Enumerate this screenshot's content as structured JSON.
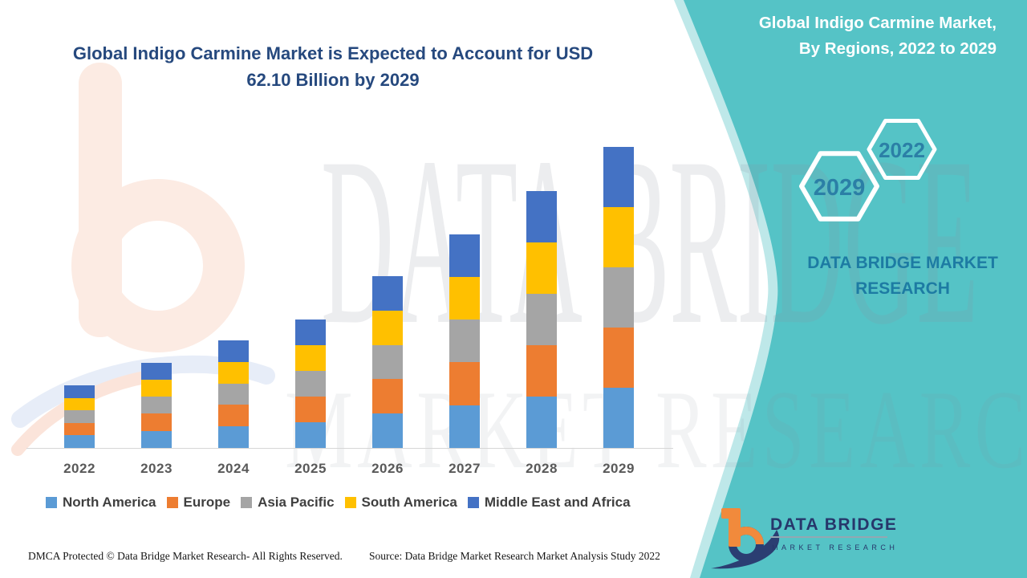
{
  "title": {
    "lines": [
      "Global Indigo Carmine Market is Expected to Account for USD",
      "62.10 Billion by 2029"
    ],
    "color": "#26497E"
  },
  "side_panel": {
    "bg_color": "#55C3C6",
    "heading_lines": [
      "Global Indigo Carmine Market,",
      "By Regions, 2022 to 2029"
    ],
    "hexagons": [
      {
        "label": "2029"
      },
      {
        "label": "2022"
      }
    ],
    "brand_lines": [
      "DATA BRIDGE MARKET",
      "RESEARCH"
    ],
    "brand_color": "#1d7ba3"
  },
  "chart_data": {
    "type": "bar",
    "stacked": true,
    "title": "Global Indigo Carmine Market, By Regions, 2022 to 2029",
    "unit": "USD Billion",
    "categories": [
      "2022",
      "2023",
      "2024",
      "2025",
      "2026",
      "2027",
      "2028",
      "2029"
    ],
    "totals_estimated": [
      12.9,
      17.6,
      22.2,
      26.5,
      35.4,
      44.1,
      53.0,
      62.1
    ],
    "series": [
      {
        "name": "North America",
        "color": "#5B9BD5",
        "values": [
          2.58,
          3.52,
          4.44,
          5.3,
          7.08,
          8.82,
          10.6,
          12.42
        ]
      },
      {
        "name": "Europe",
        "color": "#ED7D31",
        "values": [
          2.58,
          3.52,
          4.44,
          5.3,
          7.08,
          8.82,
          10.6,
          12.42
        ]
      },
      {
        "name": "Asia Pacific",
        "color": "#A5A5A5",
        "values": [
          2.58,
          3.52,
          4.44,
          5.3,
          7.08,
          8.82,
          10.6,
          12.42
        ]
      },
      {
        "name": "South America",
        "color": "#FFC000",
        "values": [
          2.58,
          3.52,
          4.44,
          5.3,
          7.08,
          8.82,
          10.6,
          12.42
        ]
      },
      {
        "name": "Middle East and Africa",
        "color": "#4472C4",
        "values": [
          2.58,
          3.52,
          4.44,
          5.3,
          7.08,
          8.82,
          10.6,
          12.42
        ]
      }
    ],
    "ylim": [
      0,
      65
    ],
    "grid": false,
    "y_axis_labels_visible": false,
    "legend_position": "bottom"
  },
  "watermark": {
    "line1": "DATA BRIDGE",
    "line2": "MARKET RESEARCH"
  },
  "logo": {
    "line1": "DATA BRIDGE",
    "line2": "MARKET RESEARCH"
  },
  "footer": {
    "left": "DMCA Protected © Data Bridge Market Research- All Rights Reserved.",
    "right": "Source: Data Bridge Market Research Market Analysis Study 2022"
  }
}
